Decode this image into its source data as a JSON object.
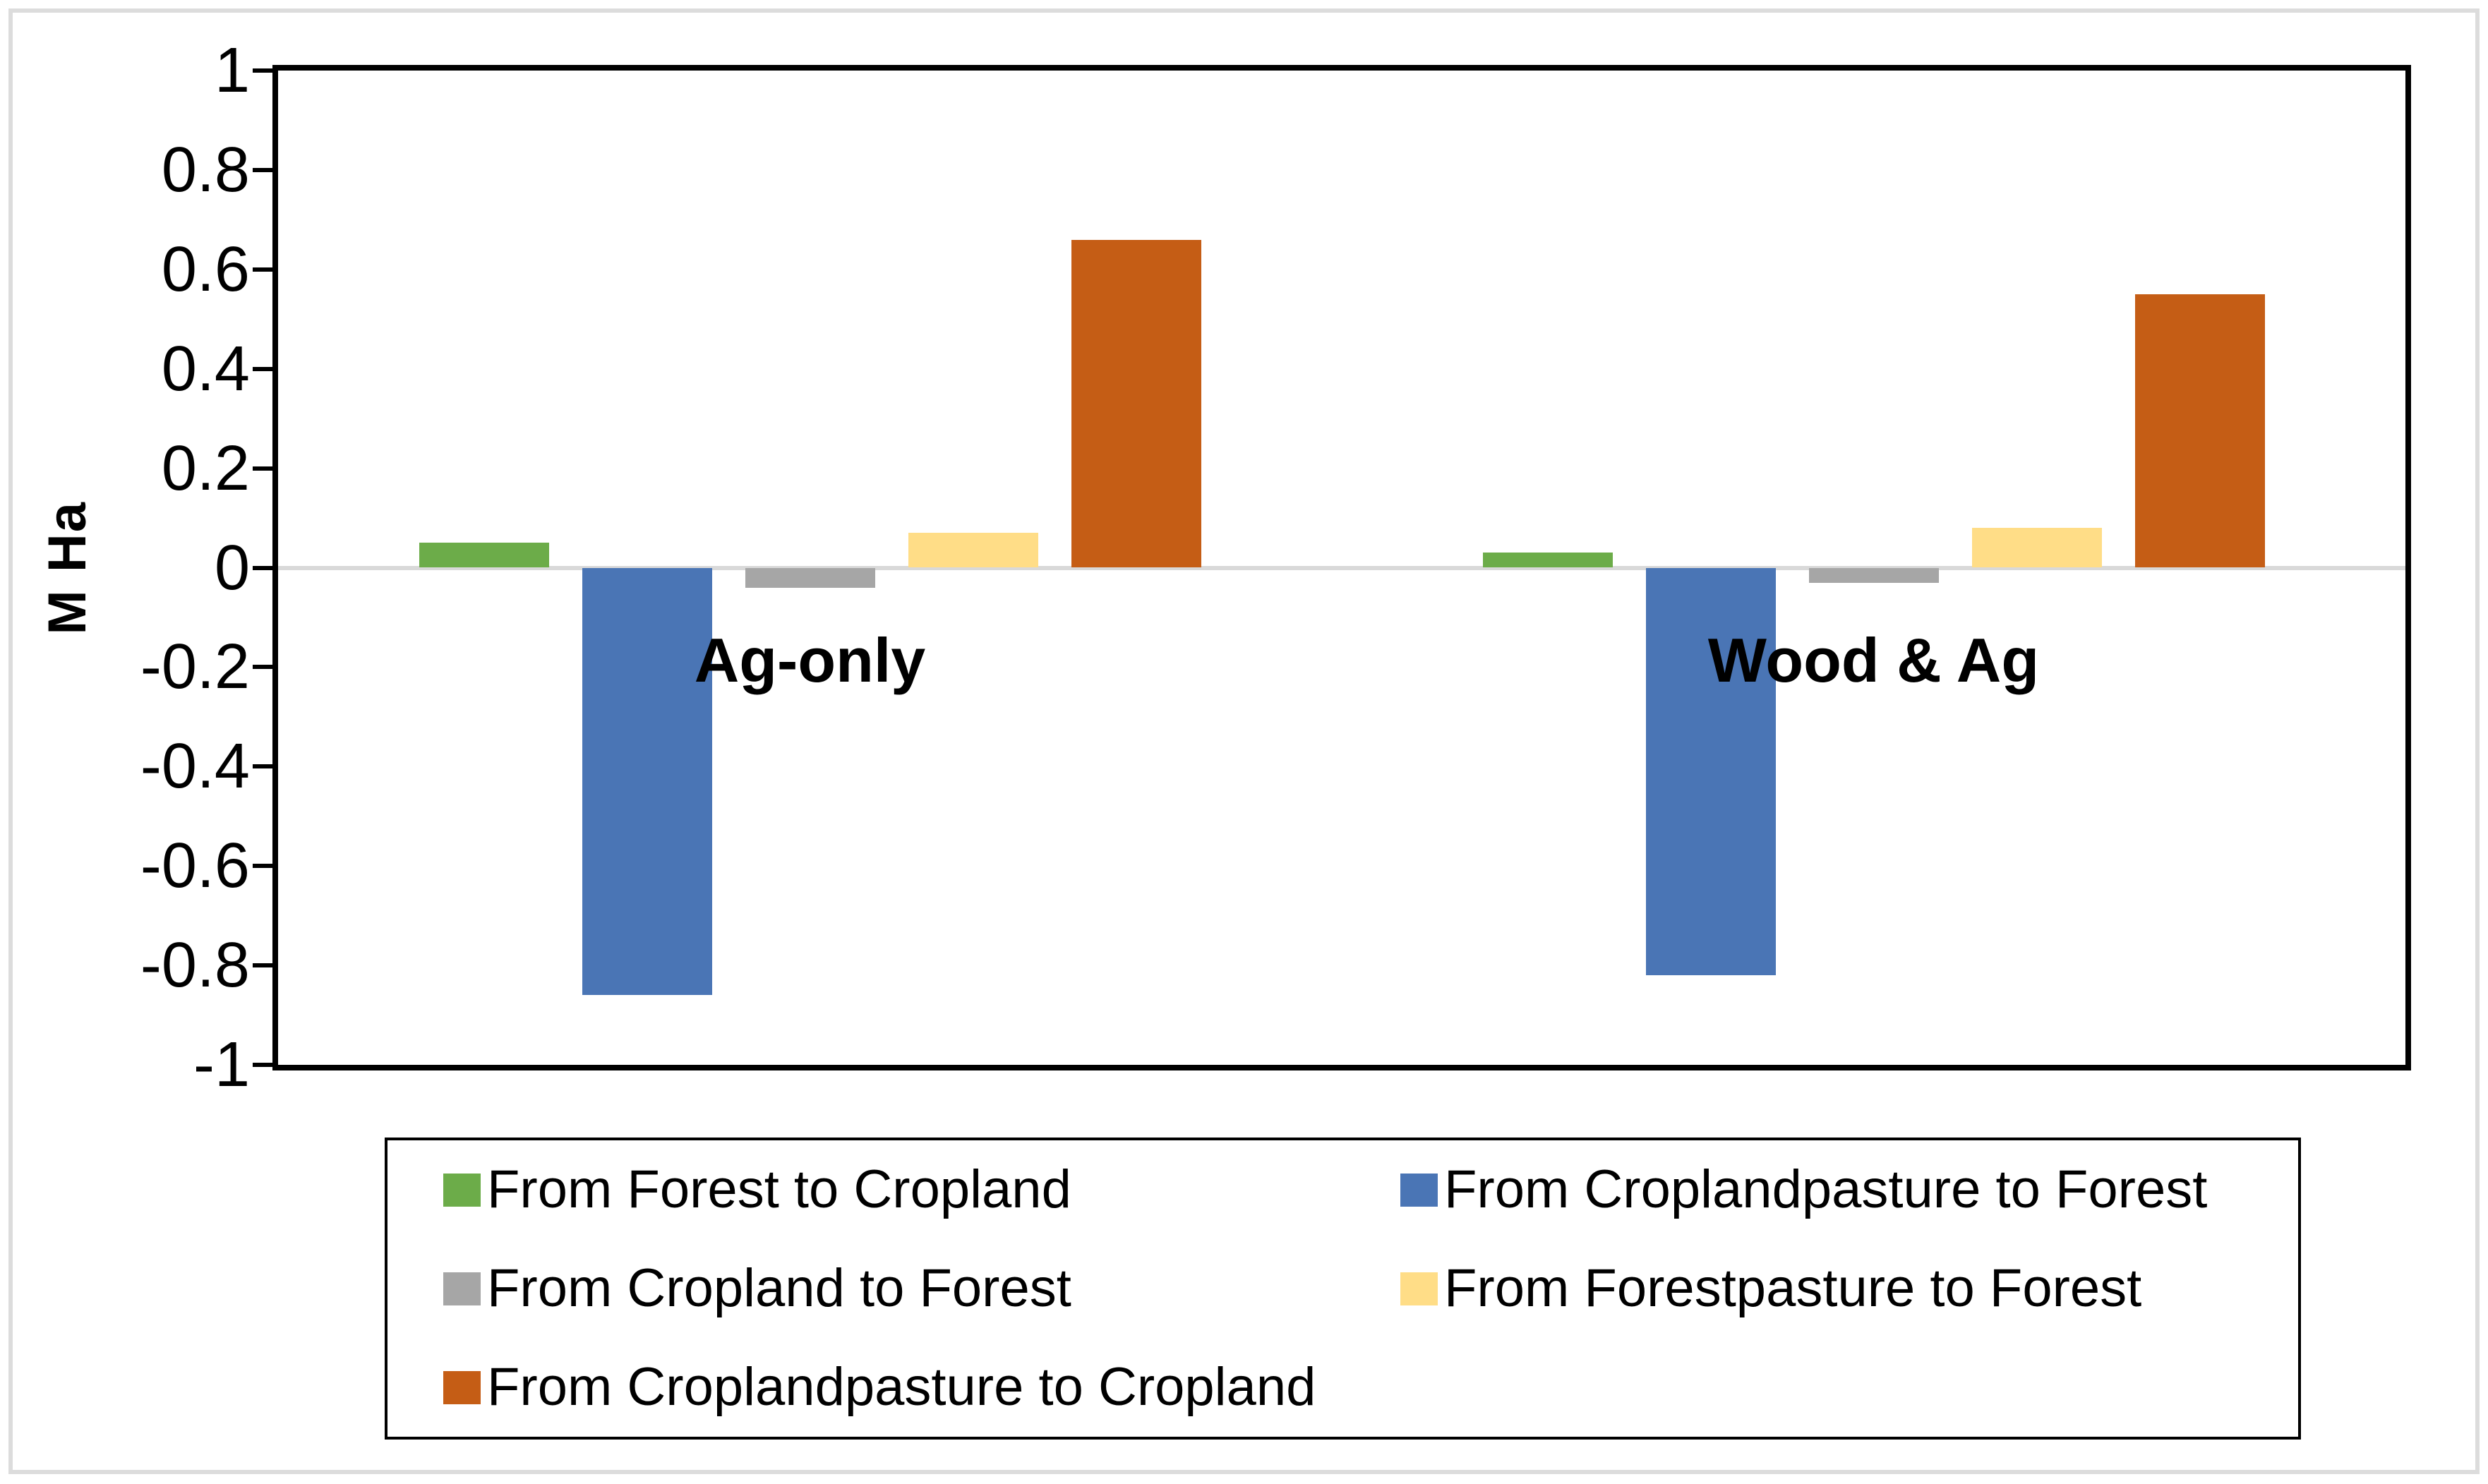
{
  "chart_data": {
    "type": "bar",
    "title": "",
    "ylabel": "M Ha",
    "xlabel": "",
    "categories": [
      "Ag-only",
      "Wood & Ag"
    ],
    "series": [
      {
        "name": "From Forest to Cropland",
        "color": "#6CAC49",
        "values": [
          0.05,
          0.03
        ]
      },
      {
        "name": "From Croplandpasture to Forest",
        "color": "#4A75B5",
        "values": [
          -0.86,
          -0.82
        ]
      },
      {
        "name": "From Cropland to Forest",
        "color": "#A6A6A6",
        "values": [
          -0.04,
          -0.03
        ]
      },
      {
        "name": "From Forestpasture to Forest",
        "color": "#FFDD87",
        "values": [
          0.07,
          0.08
        ]
      },
      {
        "name": "From Croplandpasture to Cropland",
        "color": "#C55D15",
        "values": [
          0.66,
          0.55
        ]
      }
    ],
    "ylim": [
      -1,
      1
    ],
    "ytick_labels": [
      "1",
      "0.8",
      "0.6",
      "0.4",
      "0.2",
      "0",
      "-0.2",
      "-0.4",
      "-0.6",
      "-0.8",
      "-1"
    ],
    "grid": "zero-line-only",
    "legend_position": "bottom-boxed-two-columns",
    "colors": {
      "zero_gridline": "#D9D9D9",
      "axis": "#000000",
      "outer_frame": "#DCDCDC",
      "text": "#000000",
      "background": "#FFFFFF"
    }
  }
}
